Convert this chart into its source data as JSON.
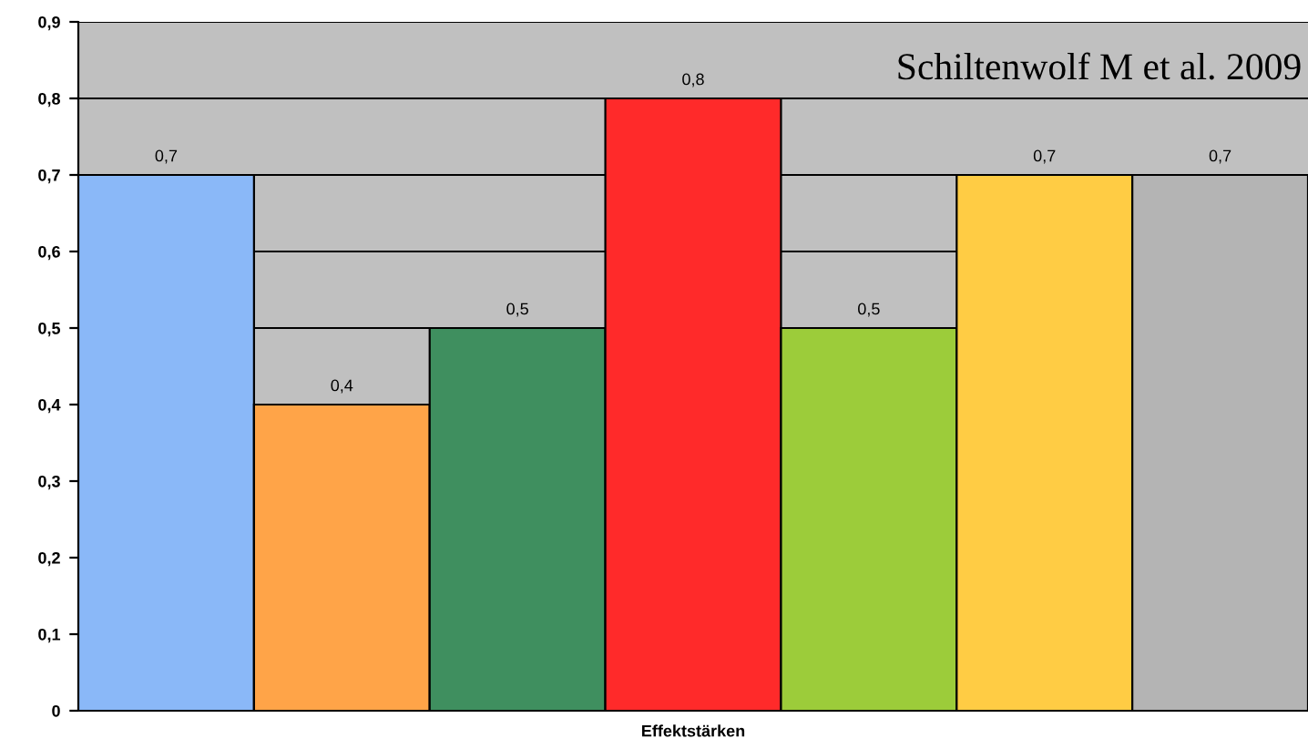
{
  "chart_data": {
    "type": "bar",
    "xlabel": "Effektstärken",
    "annotations": [
      "Schiltenwolf M et al. 2009"
    ],
    "categories": [
      null,
      null,
      null,
      null,
      null,
      null,
      null
    ],
    "values": [
      0.7,
      0.4,
      0.5,
      0.8,
      0.5,
      0.7,
      0.7
    ],
    "value_labels": [
      "0,7",
      "0,4",
      "0,5",
      "0,8",
      "0,5",
      "0,7",
      "0,7"
    ],
    "colors": [
      "#8ab8f8",
      "#ffa448",
      "#3f8f5f",
      "#ff2a2a",
      "#9ccc3a",
      "#ffcc44",
      "#b4b4b4"
    ],
    "ylim": [
      0,
      0.9
    ],
    "yticks": [
      {
        "value": 0,
        "label": "0"
      },
      {
        "value": 0.1,
        "label": "0,1"
      },
      {
        "value": 0.2,
        "label": "0,2"
      },
      {
        "value": 0.3,
        "label": "0,3"
      },
      {
        "value": 0.4,
        "label": "0,4"
      },
      {
        "value": 0.5,
        "label": "0,5"
      },
      {
        "value": 0.6,
        "label": "0,6"
      },
      {
        "value": 0.7,
        "label": "0,7"
      },
      {
        "value": 0.8,
        "label": "0,8"
      },
      {
        "value": 0.9,
        "label": "0,9"
      }
    ],
    "grid": "y",
    "legend": false
  }
}
